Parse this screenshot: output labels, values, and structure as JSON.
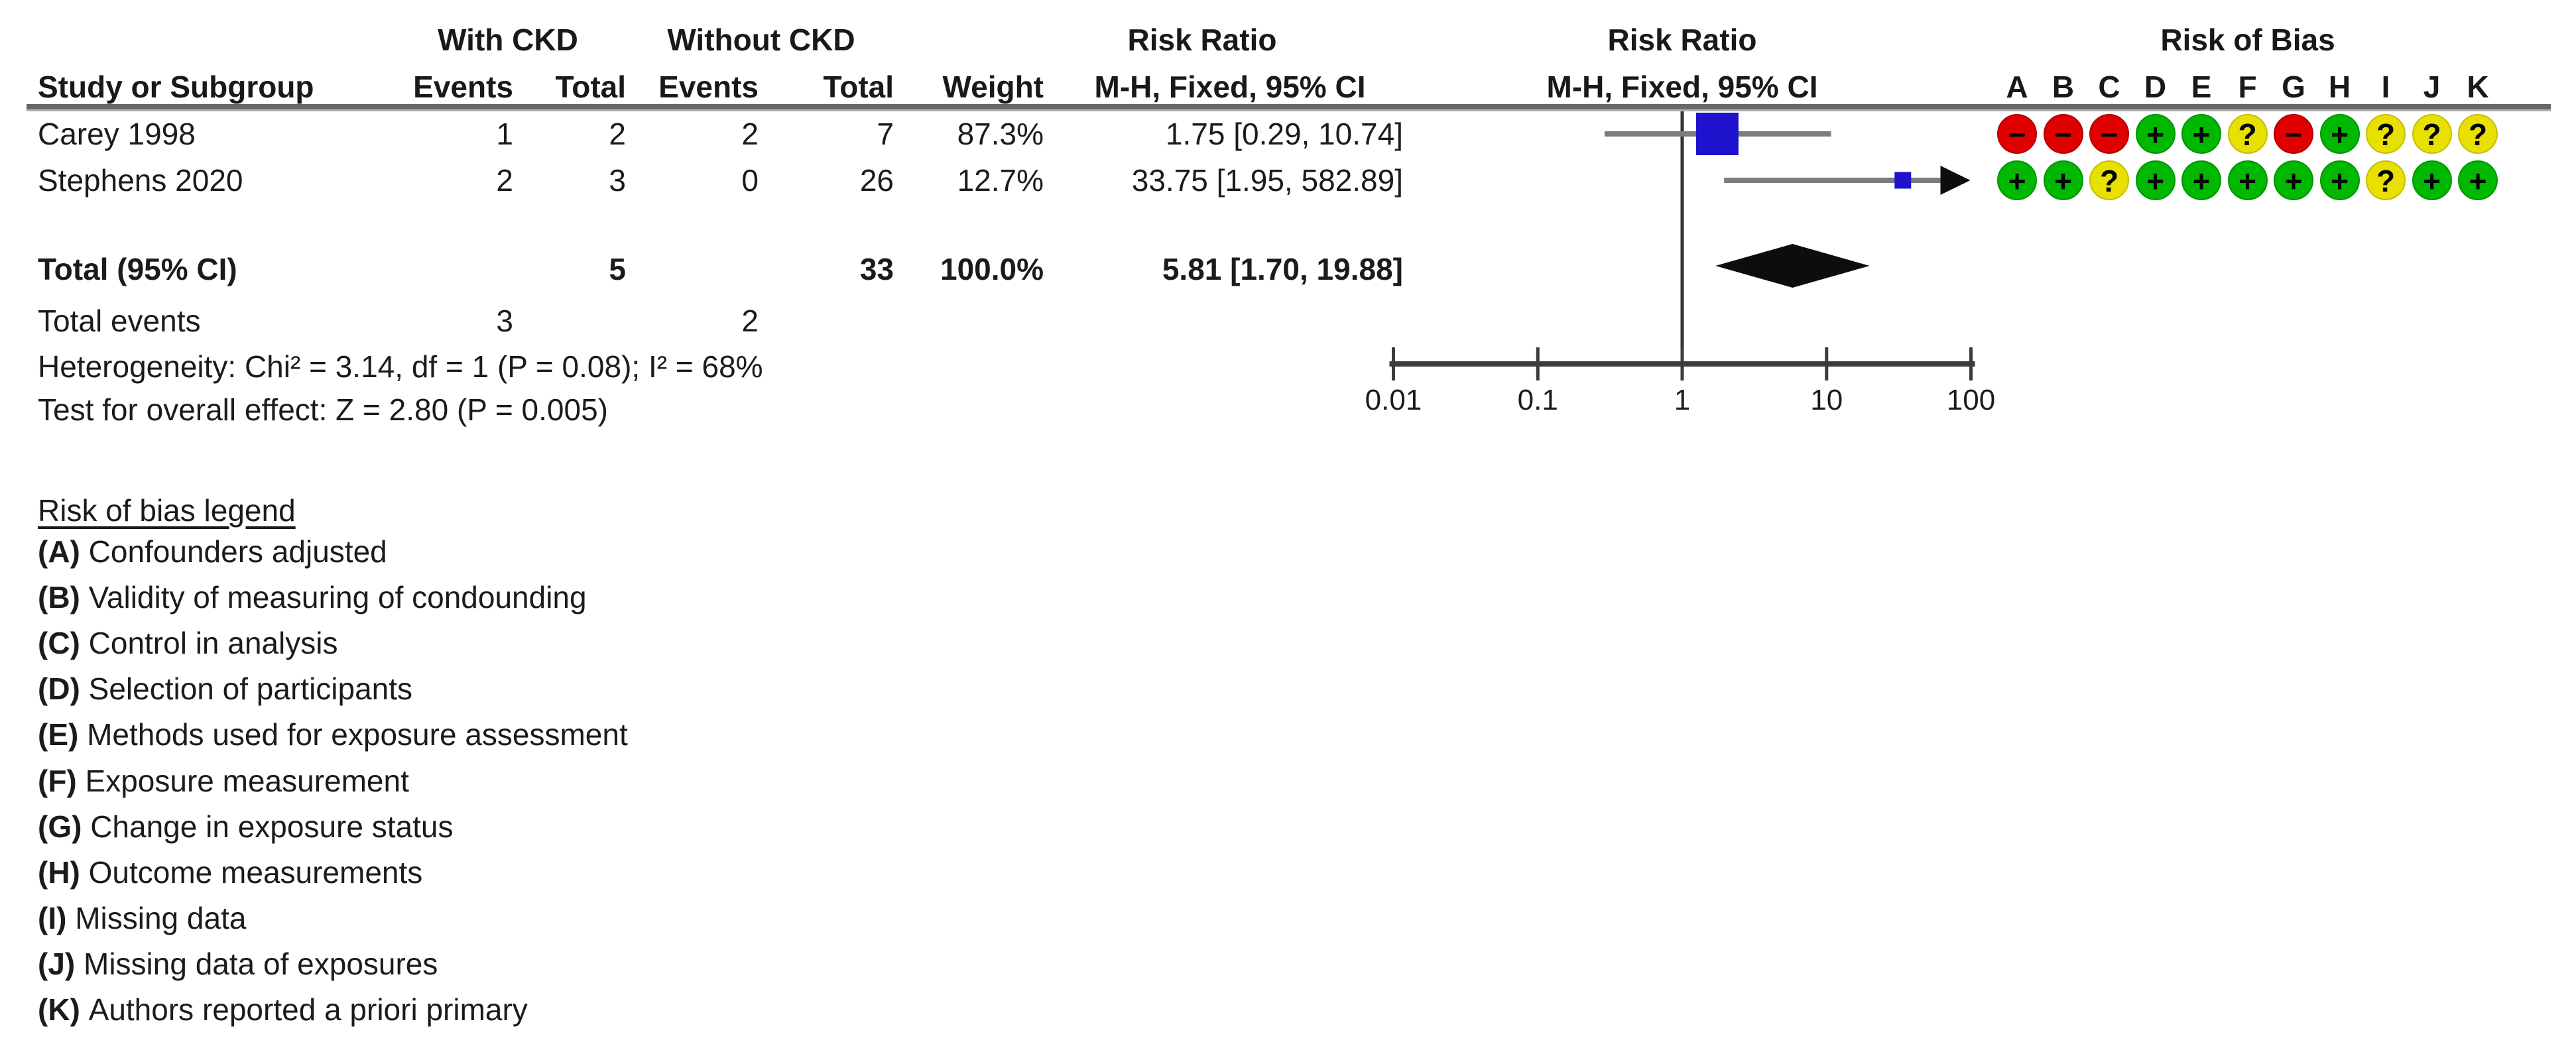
{
  "header": {
    "group1": "With CKD",
    "group2": "Without CKD",
    "risk_ratio_text_col": "Risk Ratio",
    "risk_ratio_plot_col": "Risk Ratio",
    "method_text_col": "M-H, Fixed, 95% CI",
    "method_plot_col": "M-H, Fixed, 95% CI",
    "risk_of_bias": "Risk of Bias",
    "study": "Study or Subgroup",
    "events": "Events",
    "total": "Total",
    "weight": "Weight"
  },
  "rob": {
    "columns": [
      "A",
      "B",
      "C",
      "D",
      "E",
      "F",
      "G",
      "H",
      "I",
      "J",
      "K"
    ],
    "symbols": {
      "plus": "+",
      "minus": "−",
      "unclear": "?"
    },
    "colors": {
      "plus": "#00b800",
      "minus": "#e00000",
      "unclear": "#e8e000"
    },
    "rows": [
      [
        "minus",
        "minus",
        "minus",
        "plus",
        "plus",
        "unclear",
        "minus",
        "plus",
        "unclear",
        "unclear",
        "unclear"
      ],
      [
        "plus",
        "plus",
        "unclear",
        "plus",
        "plus",
        "plus",
        "plus",
        "plus",
        "unclear",
        "plus",
        "plus"
      ]
    ]
  },
  "table": {
    "rows": [
      {
        "study": "Carey 1998",
        "events1": "1",
        "total1": "2",
        "events2": "2",
        "total2": "7",
        "weight": "87.3%",
        "ratio": "1.75 [0.29, 10.74]"
      },
      {
        "study": "Stephens 2020",
        "events1": "2",
        "total1": "3",
        "events2": "0",
        "total2": "26",
        "weight": "12.7%",
        "ratio": "33.75 [1.95, 582.89]"
      }
    ],
    "total_row": {
      "label": "Total (95% CI)",
      "total1": "5",
      "total2": "33",
      "weight": "100.0%",
      "ratio": "5.81 [1.70, 19.88]"
    },
    "total_events": {
      "label": "Total events",
      "events1": "3",
      "events2": "2"
    },
    "heterogeneity": "Heterogeneity: Chi² = 3.14, df = 1 (P = 0.08); I² = 68%",
    "overall_effect": "Test for overall effect: Z = 2.80 (P = 0.005)"
  },
  "legend": {
    "title": "Risk of bias legend",
    "items": [
      {
        "id": "A",
        "text": "Confounders adjusted"
      },
      {
        "id": "B",
        "text": "Validity of measuring of condounding"
      },
      {
        "id": "C",
        "text": "Control in analysis"
      },
      {
        "id": "D",
        "text": "Selection of participants"
      },
      {
        "id": "E",
        "text": "Methods used for exposure assessment"
      },
      {
        "id": "F",
        "text": "Exposure measurement"
      },
      {
        "id": "G",
        "text": "Change in exposure status"
      },
      {
        "id": "H",
        "text": "Outcome measurements"
      },
      {
        "id": "I",
        "text": "Missing data"
      },
      {
        "id": "J",
        "text": "Missing data of exposures"
      },
      {
        "id": "K",
        "text": "Authors reported a priori primary"
      }
    ]
  },
  "chart_data": {
    "type": "forest",
    "effect_measure": "Risk Ratio",
    "method": "M-H, Fixed, 95% CI",
    "x_scale": "log10",
    "axis_ticks": [
      0.01,
      0.1,
      1,
      10,
      100
    ],
    "axis_range": [
      0.01,
      100
    ],
    "null_value": 1,
    "studies": [
      {
        "name": "Carey 1998",
        "rr": 1.75,
        "ci_low": 0.29,
        "ci_high": 10.74,
        "weight_pct": 87.3
      },
      {
        "name": "Stephens 2020",
        "rr": 33.75,
        "ci_low": 1.95,
        "ci_high": 582.89,
        "weight_pct": 12.7
      }
    ],
    "total": {
      "label": "Total (95% CI)",
      "rr": 5.81,
      "ci_low": 1.7,
      "ci_high": 19.88,
      "weight_pct": 100.0
    },
    "heterogeneity": {
      "chi2": 3.14,
      "df": 1,
      "p": 0.08,
      "i2_pct": 68
    },
    "overall_effect": {
      "z": 2.8,
      "p": 0.005
    },
    "colors": {
      "study_square": "#1e12cc",
      "summary_diamond": "#0d0d0d",
      "ci_line": "#7d7d7d",
      "axis": "#3c3c3c"
    }
  }
}
